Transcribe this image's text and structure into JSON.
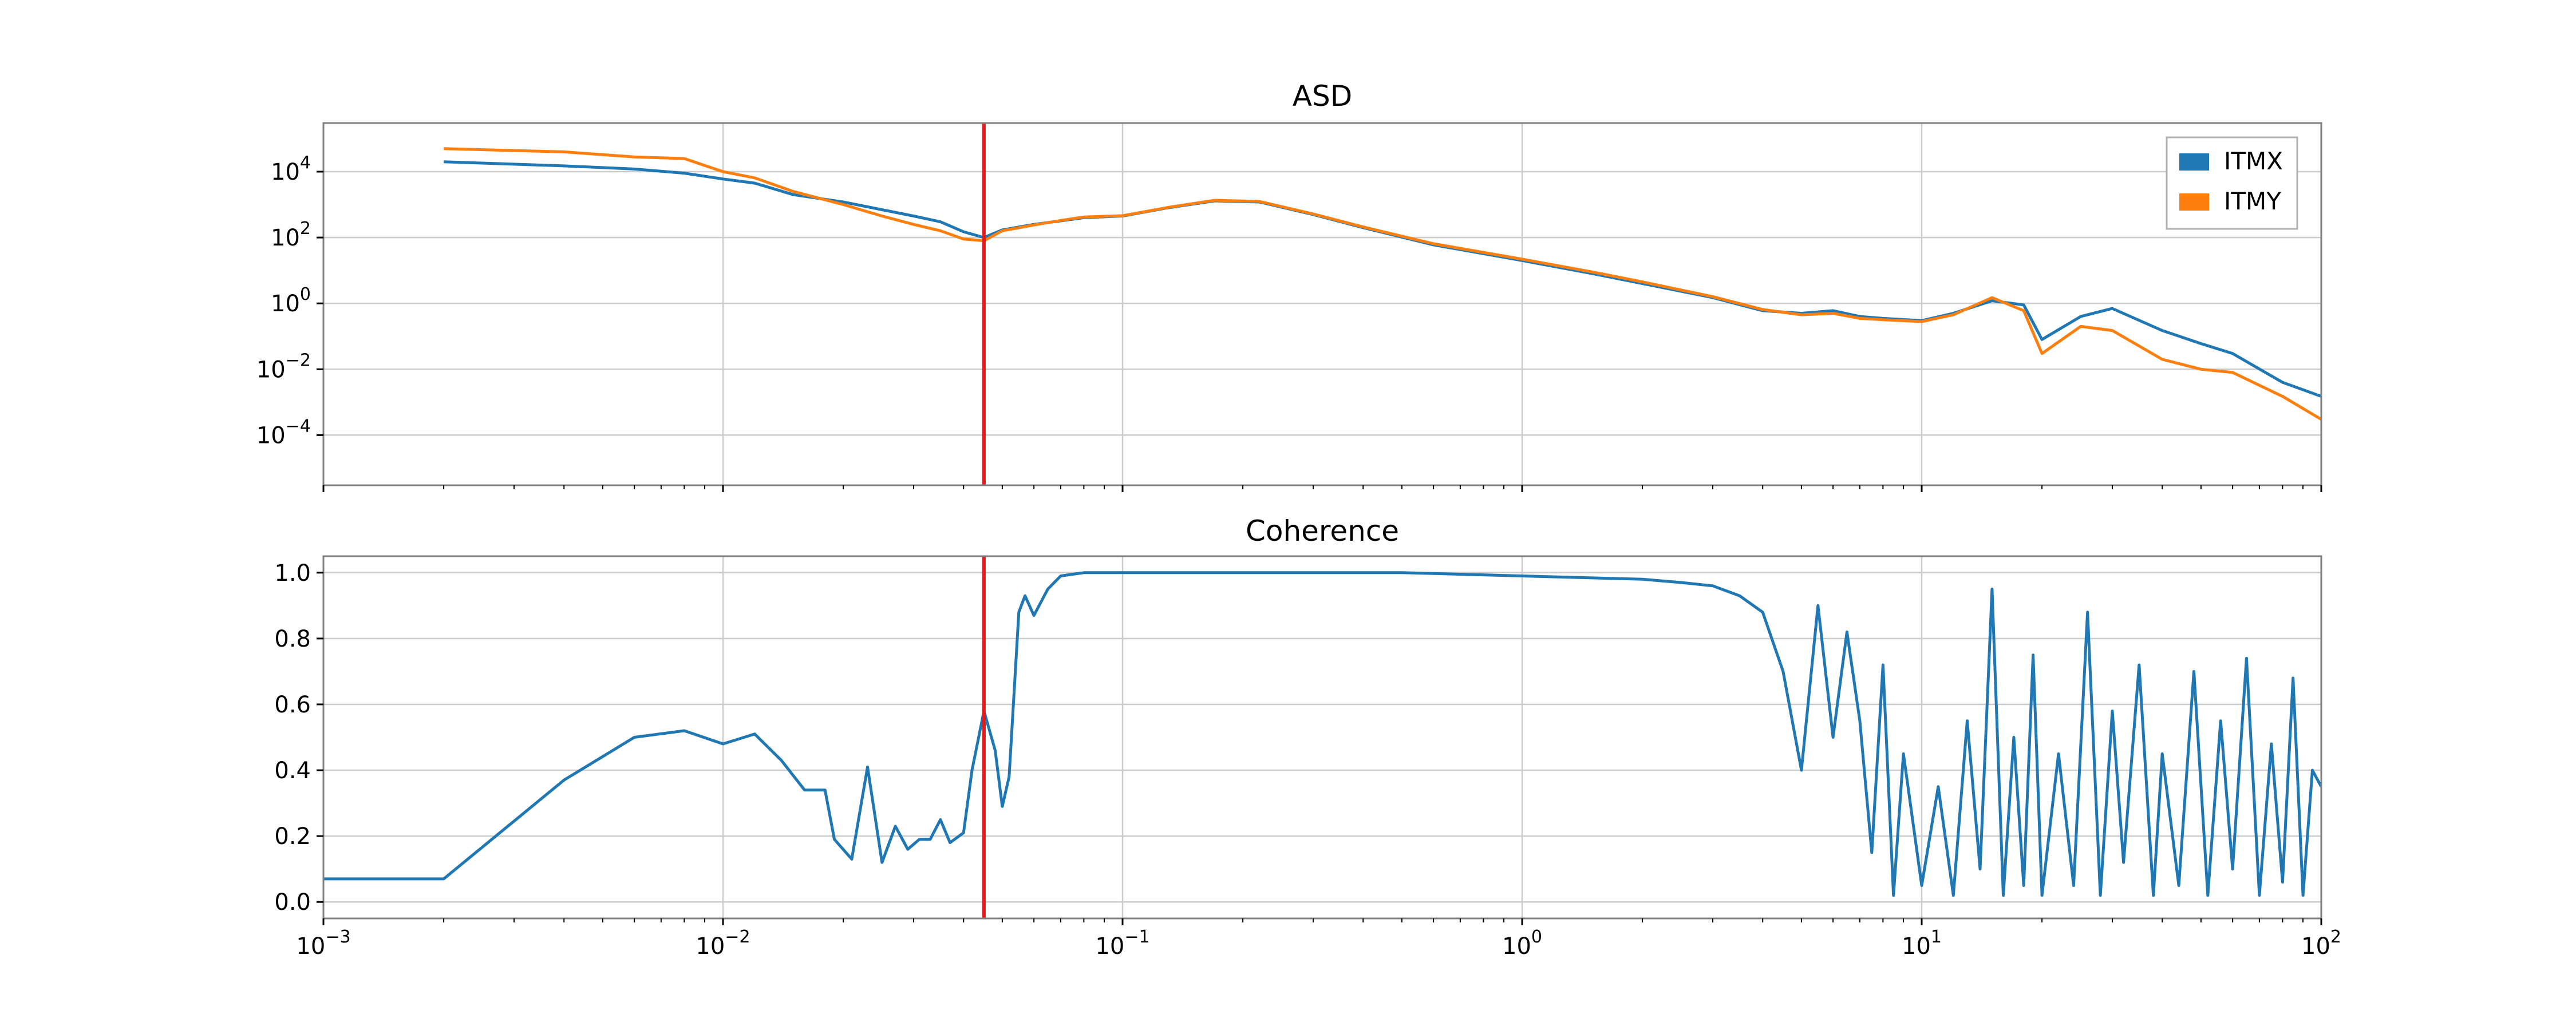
{
  "colors": {
    "itmx": "#1f77b4",
    "itmy": "#ff7f0e",
    "marker": "#e41a1c",
    "grid": "#cccccc",
    "frame": "#808080"
  },
  "chart_data": [
    {
      "type": "line",
      "title": "ASD",
      "xscale": "log",
      "yscale": "log",
      "xlim": [
        0.001,
        100
      ],
      "ylim": [
        3e-06,
        300000
      ],
      "grid": true,
      "legend_placement": "top-right",
      "x_ticks": [
        {
          "value": 0.001,
          "base": "10",
          "exp": "−3"
        },
        {
          "value": 0.01,
          "base": "10",
          "exp": "−2"
        },
        {
          "value": 0.1,
          "base": "10",
          "exp": "−1"
        },
        {
          "value": 1,
          "base": "10",
          "exp": "0"
        },
        {
          "value": 10,
          "base": "10",
          "exp": "1"
        },
        {
          "value": 100,
          "base": "10",
          "exp": "2"
        }
      ],
      "y_ticks": [
        {
          "value": 0.0001,
          "base": "10",
          "exp": "−4"
        },
        {
          "value": 0.01,
          "base": "10",
          "exp": "−2"
        },
        {
          "value": 1,
          "base": "10",
          "exp": "0"
        },
        {
          "value": 100,
          "base": "10",
          "exp": "2"
        },
        {
          "value": 10000,
          "base": "10",
          "exp": "4"
        }
      ],
      "vline_x": 0.045,
      "series": [
        {
          "name": "ITMX",
          "color": "#1f77b4",
          "points": [
            [
              0.002,
              20000
            ],
            [
              0.004,
              15000
            ],
            [
              0.006,
              12000
            ],
            [
              0.008,
              9000
            ],
            [
              0.01,
              6000
            ],
            [
              0.012,
              4500
            ],
            [
              0.015,
              2000
            ],
            [
              0.02,
              1200
            ],
            [
              0.025,
              700
            ],
            [
              0.03,
              450
            ],
            [
              0.035,
              300
            ],
            [
              0.04,
              150
            ],
            [
              0.045,
              100
            ],
            [
              0.05,
              170
            ],
            [
              0.06,
              250
            ],
            [
              0.07,
              320
            ],
            [
              0.08,
              400
            ],
            [
              0.1,
              450
            ],
            [
              0.13,
              800
            ],
            [
              0.17,
              1300
            ],
            [
              0.22,
              1200
            ],
            [
              0.3,
              500
            ],
            [
              0.4,
              200
            ],
            [
              0.6,
              60
            ],
            [
              1,
              20
            ],
            [
              1.5,
              8
            ],
            [
              2,
              4
            ],
            [
              3,
              1.5
            ],
            [
              4,
              0.6
            ],
            [
              5,
              0.5
            ],
            [
              6,
              0.6
            ],
            [
              7,
              0.4
            ],
            [
              8,
              0.35
            ],
            [
              10,
              0.3
            ],
            [
              12,
              0.5
            ],
            [
              15,
              1.2
            ],
            [
              18,
              0.9
            ],
            [
              20,
              0.08
            ],
            [
              25,
              0.4
            ],
            [
              30,
              0.7
            ],
            [
              40,
              0.15
            ],
            [
              50,
              0.06
            ],
            [
              60,
              0.03
            ],
            [
              80,
              0.004
            ],
            [
              100,
              0.0015
            ]
          ]
        },
        {
          "name": "ITMY",
          "color": "#ff7f0e",
          "points": [
            [
              0.002,
              50000
            ],
            [
              0.004,
              40000
            ],
            [
              0.006,
              28000
            ],
            [
              0.008,
              25000
            ],
            [
              0.01,
              10000
            ],
            [
              0.012,
              6500
            ],
            [
              0.015,
              2500
            ],
            [
              0.02,
              1000
            ],
            [
              0.025,
              450
            ],
            [
              0.03,
              250
            ],
            [
              0.035,
              160
            ],
            [
              0.04,
              90
            ],
            [
              0.045,
              80
            ],
            [
              0.05,
              160
            ],
            [
              0.06,
              240
            ],
            [
              0.07,
              330
            ],
            [
              0.08,
              420
            ],
            [
              0.1,
              460
            ],
            [
              0.13,
              820
            ],
            [
              0.17,
              1350
            ],
            [
              0.22,
              1250
            ],
            [
              0.3,
              520
            ],
            [
              0.4,
              210
            ],
            [
              0.6,
              65
            ],
            [
              1,
              22
            ],
            [
              1.5,
              9
            ],
            [
              2,
              4.5
            ],
            [
              3,
              1.6
            ],
            [
              4,
              0.65
            ],
            [
              5,
              0.45
            ],
            [
              6,
              0.5
            ],
            [
              7,
              0.35
            ],
            [
              8,
              0.32
            ],
            [
              10,
              0.28
            ],
            [
              12,
              0.45
            ],
            [
              15,
              1.5
            ],
            [
              18,
              0.6
            ],
            [
              20,
              0.03
            ],
            [
              25,
              0.2
            ],
            [
              30,
              0.15
            ],
            [
              40,
              0.02
            ],
            [
              50,
              0.01
            ],
            [
              60,
              0.008
            ],
            [
              80,
              0.0015
            ],
            [
              100,
              0.0003
            ]
          ]
        }
      ]
    },
    {
      "type": "line",
      "title": "Coherence",
      "xscale": "log",
      "yscale": "linear",
      "xlim": [
        0.001,
        100
      ],
      "ylim": [
        -0.05,
        1.05
      ],
      "grid": true,
      "x_ticks": [
        {
          "value": 0.001,
          "base": "10",
          "exp": "−3"
        },
        {
          "value": 0.01,
          "base": "10",
          "exp": "−2"
        },
        {
          "value": 0.1,
          "base": "10",
          "exp": "−1"
        },
        {
          "value": 1,
          "base": "10",
          "exp": "0"
        },
        {
          "value": 10,
          "base": "10",
          "exp": "1"
        },
        {
          "value": 100,
          "base": "10",
          "exp": "2"
        }
      ],
      "y_ticks": [
        {
          "value": 0.0,
          "label": "0.0"
        },
        {
          "value": 0.2,
          "label": "0.2"
        },
        {
          "value": 0.4,
          "label": "0.4"
        },
        {
          "value": 0.6,
          "label": "0.6"
        },
        {
          "value": 0.8,
          "label": "0.8"
        },
        {
          "value": 1.0,
          "label": "1.0"
        }
      ],
      "vline_x": 0.045,
      "series": [
        {
          "color": "#1f77b4",
          "points": [
            [
              0.001,
              0.07
            ],
            [
              0.002,
              0.07
            ],
            [
              0.004,
              0.37
            ],
            [
              0.006,
              0.5
            ],
            [
              0.008,
              0.52
            ],
            [
              0.01,
              0.48
            ],
            [
              0.012,
              0.51
            ],
            [
              0.014,
              0.43
            ],
            [
              0.016,
              0.34
            ],
            [
              0.018,
              0.34
            ],
            [
              0.019,
              0.19
            ],
            [
              0.021,
              0.13
            ],
            [
              0.023,
              0.41
            ],
            [
              0.025,
              0.12
            ],
            [
              0.027,
              0.23
            ],
            [
              0.029,
              0.16
            ],
            [
              0.031,
              0.19
            ],
            [
              0.033,
              0.19
            ],
            [
              0.035,
              0.25
            ],
            [
              0.037,
              0.18
            ],
            [
              0.04,
              0.21
            ],
            [
              0.042,
              0.4
            ],
            [
              0.045,
              0.58
            ],
            [
              0.048,
              0.46
            ],
            [
              0.05,
              0.29
            ],
            [
              0.052,
              0.38
            ],
            [
              0.055,
              0.88
            ],
            [
              0.057,
              0.93
            ],
            [
              0.06,
              0.87
            ],
            [
              0.065,
              0.95
            ],
            [
              0.07,
              0.99
            ],
            [
              0.08,
              1.0
            ],
            [
              0.2,
              1.0
            ],
            [
              0.5,
              1.0
            ],
            [
              1.0,
              0.99
            ],
            [
              2.0,
              0.98
            ],
            [
              2.5,
              0.97
            ],
            [
              3.0,
              0.96
            ],
            [
              3.5,
              0.93
            ],
            [
              4.0,
              0.88
            ],
            [
              4.5,
              0.7
            ],
            [
              5.0,
              0.4
            ],
            [
              5.5,
              0.9
            ],
            [
              6.0,
              0.5
            ],
            [
              6.5,
              0.82
            ],
            [
              7.0,
              0.55
            ],
            [
              7.5,
              0.15
            ],
            [
              8.0,
              0.72
            ],
            [
              8.5,
              0.02
            ],
            [
              9.0,
              0.45
            ],
            [
              10.0,
              0.05
            ],
            [
              11,
              0.35
            ],
            [
              12,
              0.02
            ],
            [
              13,
              0.55
            ],
            [
              14,
              0.1
            ],
            [
              15,
              0.95
            ],
            [
              16,
              0.02
            ],
            [
              17,
              0.5
            ],
            [
              18,
              0.05
            ],
            [
              19,
              0.75
            ],
            [
              20,
              0.02
            ],
            [
              22,
              0.45
            ],
            [
              24,
              0.05
            ],
            [
              26,
              0.88
            ],
            [
              28,
              0.02
            ],
            [
              30,
              0.58
            ],
            [
              32,
              0.12
            ],
            [
              35,
              0.72
            ],
            [
              38,
              0.02
            ],
            [
              40,
              0.45
            ],
            [
              44,
              0.05
            ],
            [
              48,
              0.7
            ],
            [
              52,
              0.02
            ],
            [
              56,
              0.55
            ],
            [
              60,
              0.1
            ],
            [
              65,
              0.74
            ],
            [
              70,
              0.02
            ],
            [
              75,
              0.48
            ],
            [
              80,
              0.06
            ],
            [
              85,
              0.68
            ],
            [
              90,
              0.02
            ],
            [
              95,
              0.4
            ],
            [
              100,
              0.35
            ]
          ]
        }
      ]
    }
  ]
}
